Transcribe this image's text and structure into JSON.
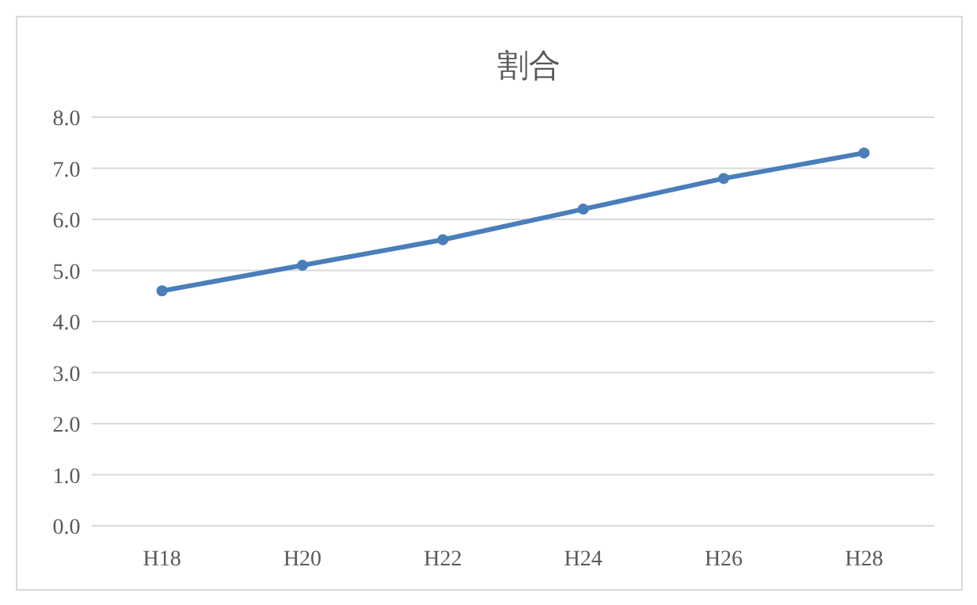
{
  "chart_data": {
    "type": "line",
    "title": "割合",
    "categories": [
      "H18",
      "H20",
      "H22",
      "H24",
      "H26",
      "H28"
    ],
    "values": [
      4.6,
      5.1,
      5.6,
      6.2,
      6.8,
      7.3
    ],
    "color": "#4a7ebb",
    "ylim": [
      0,
      8
    ],
    "yticks": [
      {
        "value": 0,
        "label": "0.0"
      },
      {
        "value": 1,
        "label": "1.0"
      },
      {
        "value": 2,
        "label": "2.0"
      },
      {
        "value": 3,
        "label": "3.0"
      },
      {
        "value": 4,
        "label": "4.0"
      },
      {
        "value": 5,
        "label": "5.0"
      },
      {
        "value": 6,
        "label": "6.0"
      },
      {
        "value": 7,
        "label": "7.0"
      },
      {
        "value": 8,
        "label": "8.0"
      }
    ],
    "grid": "y",
    "marker": "circle",
    "line_style": "solid"
  }
}
